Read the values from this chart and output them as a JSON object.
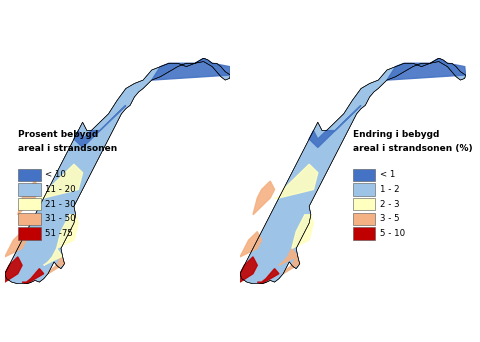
{
  "left_legend_title_line1": "Prosent bebygd",
  "left_legend_title_line2": "areal i strandsonen",
  "left_legend_items": [
    {
      "label": "< 10",
      "color": "#4472C4"
    },
    {
      "label": "11 - 20",
      "color": "#9DC3E6"
    },
    {
      "label": "21 - 30",
      "color": "#FFFFC0"
    },
    {
      "label": "31 - 50",
      "color": "#F4B183"
    },
    {
      "label": "51 -75",
      "color": "#C00000"
    }
  ],
  "right_legend_title_line1": "Endring i bebygd",
  "right_legend_title_line2": "areal i strandsonen (%)",
  "right_legend_items": [
    {
      "label": "< 1",
      "color": "#4472C4"
    },
    {
      "label": "1 - 2",
      "color": "#9DC3E6"
    },
    {
      "label": "2 - 3",
      "color": "#FFFFC0"
    },
    {
      "label": "3 - 5",
      "color": "#F4B183"
    },
    {
      "label": "5 - 10",
      "color": "#C00000"
    }
  ],
  "background_color": "#ffffff",
  "fig_width": 4.8,
  "fig_height": 3.42,
  "dpi": 100
}
